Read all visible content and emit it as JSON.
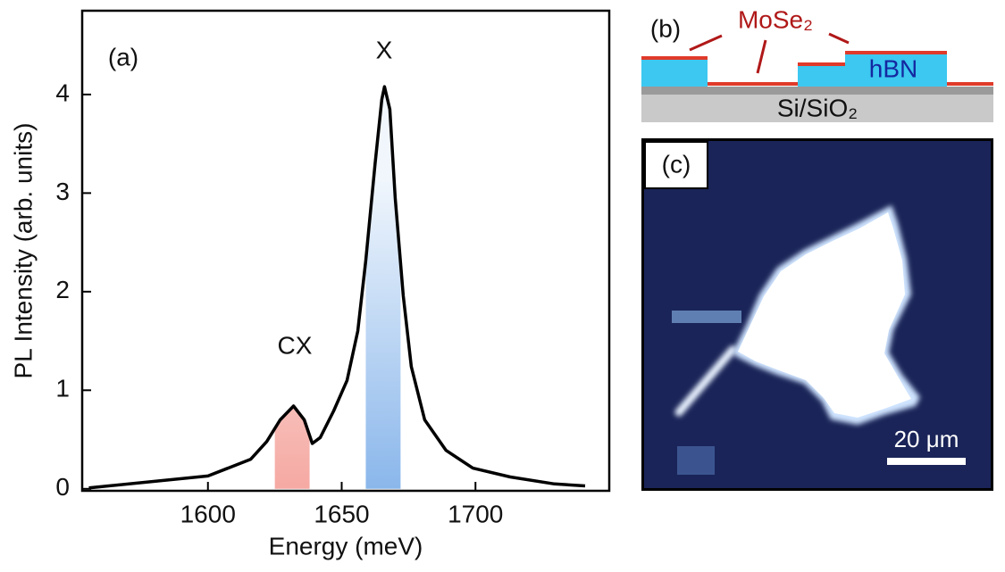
{
  "chart_data": {
    "type": "line",
    "panel_label": "(a)",
    "x_label": "Energy (meV)",
    "y_label": "PL Intensity (arb. units)",
    "x": [
      1555.5,
      1600,
      1616,
      1622,
      1627,
      1632,
      1636,
      1639,
      1642,
      1647,
      1652,
      1656,
      1659,
      1662.5,
      1665,
      1666,
      1668,
      1670,
      1673,
      1676,
      1681,
      1689,
      1699,
      1713,
      1729.5,
      1741
    ],
    "values": [
      0.01,
      0.13,
      0.3,
      0.48,
      0.7,
      0.84,
      0.7,
      0.46,
      0.52,
      0.79,
      1.1,
      1.6,
      2.32,
      3.3,
      3.95,
      4.08,
      3.85,
      2.95,
      1.96,
      1.24,
      0.7,
      0.39,
      0.21,
      0.12,
      0.05,
      0.03
    ],
    "color": "#000000",
    "xlim": [
      1553,
      1750
    ],
    "ylim": [
      -0.02,
      4.85
    ],
    "xticks": [
      1600,
      1650,
      1700
    ],
    "yticks": [
      0,
      1,
      2,
      3,
      4
    ],
    "bands": [
      {
        "range": [
          1625,
          1638
        ],
        "color": "#f07a70"
      },
      {
        "range": [
          1659,
          1672
        ],
        "color": "#4a8fe0"
      }
    ],
    "annotations": [
      "CX",
      "X"
    ]
  },
  "schematic": {
    "panel_label": "(b)",
    "top_layer": "MoSe₂",
    "middle_layer": "hBN",
    "substrate": "Si/SiO₂"
  },
  "micrograph": {
    "panel_label": "(c)",
    "scale_bar": "20 μm"
  }
}
